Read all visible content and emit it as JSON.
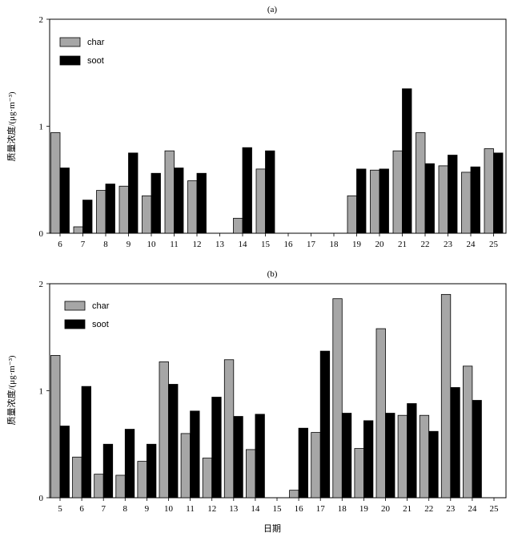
{
  "colors": {
    "char": "#a6a6a6",
    "soot": "#000000",
    "axis": "#000000"
  },
  "x_label": "日期",
  "chart_data": [
    {
      "type": "bar",
      "title": "(a)",
      "ylabel": "质量浓度/(μg·m⁻³)",
      "ylim": [
        0,
        2
      ],
      "yticks": [
        "0",
        "1",
        "2"
      ],
      "legend_position": "top-left",
      "categories": [
        "6",
        "7",
        "8",
        "9",
        "10",
        "11",
        "12",
        "13",
        "14",
        "15",
        "16",
        "17",
        "18",
        "19",
        "20",
        "21",
        "22",
        "23",
        "24",
        "25"
      ],
      "series": [
        {
          "name": "char",
          "values": [
            0.94,
            0.06,
            0.4,
            0.44,
            0.35,
            0.77,
            0.49,
            0,
            0.14,
            0.6,
            0,
            0,
            0,
            0.35,
            0.59,
            0.77,
            0.94,
            0.63,
            0.57,
            0.79
          ]
        },
        {
          "name": "soot",
          "values": [
            0.61,
            0.31,
            0.46,
            0.75,
            0.56,
            0.61,
            0.56,
            0,
            0.8,
            0.77,
            0,
            0,
            0,
            0.6,
            0.6,
            1.35,
            0.65,
            0.73,
            0.62,
            0.75
          ]
        }
      ]
    },
    {
      "type": "bar",
      "title": "(b)",
      "ylabel": "质量浓度/(μg·m⁻³)",
      "ylim": [
        0,
        2
      ],
      "yticks": [
        "0",
        "1",
        "2"
      ],
      "legend_position": "top-left",
      "categories": [
        "5",
        "6",
        "7",
        "8",
        "9",
        "10",
        "11",
        "12",
        "13",
        "14",
        "15",
        "16",
        "17",
        "18",
        "19",
        "20",
        "21",
        "22",
        "23",
        "24",
        "25"
      ],
      "series": [
        {
          "name": "char",
          "values": [
            1.33,
            0.38,
            0.22,
            0.21,
            0.34,
            1.27,
            0.6,
            0.37,
            1.29,
            0.45,
            0,
            0.07,
            0.61,
            1.86,
            0.46,
            1.58,
            0.77,
            0.77,
            1.9,
            1.23,
            0
          ]
        },
        {
          "name": "soot",
          "values": [
            0.67,
            1.04,
            0.5,
            0.64,
            0.5,
            1.06,
            0.81,
            0.94,
            0.76,
            0.78,
            0,
            0.65,
            1.37,
            0.79,
            0.72,
            0.79,
            0.88,
            0.62,
            1.03,
            0.91,
            0
          ]
        }
      ]
    }
  ]
}
